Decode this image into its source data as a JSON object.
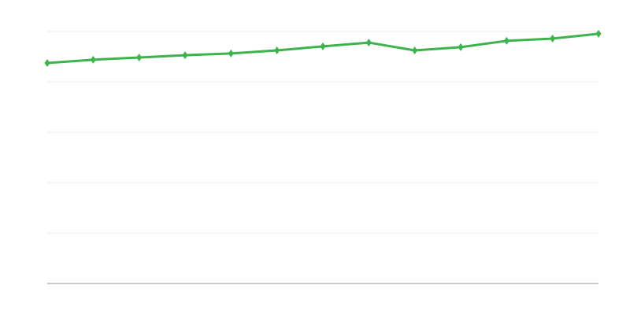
{
  "chart_data": {
    "type": "line",
    "title": "",
    "xlabel": "",
    "ylabel": "",
    "x": [
      1,
      2,
      3,
      4,
      5,
      6,
      7,
      8,
      9,
      10,
      11,
      12,
      13
    ],
    "series": [
      {
        "values": [
          87.5,
          88.8,
          89.7,
          90.6,
          91.3,
          92.5,
          94.1,
          95.6,
          92.5,
          93.8,
          96.3,
          97.2,
          99.1
        ],
        "color": "#3cb44b"
      }
    ],
    "ylim": [
      0,
      100
    ],
    "yticks": [
      0,
      20,
      40,
      60,
      80,
      100
    ],
    "grid": true,
    "legend": "none",
    "markers": "diamond",
    "colors": {
      "grid": "#ebebeb",
      "axis": "#aaaaaa",
      "line": "#3cb44b"
    }
  }
}
